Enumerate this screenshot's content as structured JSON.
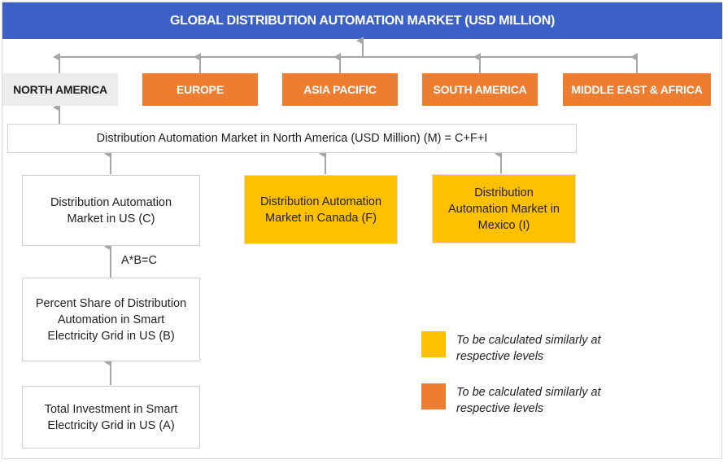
{
  "title": "GLOBAL DISTRIBUTION AUTOMATION MARKET (USD MILLION)",
  "regions": [
    {
      "label": "NORTH AMERICA"
    },
    {
      "label": "EUROPE"
    },
    {
      "label": "ASIA PACIFIC"
    },
    {
      "label": "SOUTH AMERICA"
    },
    {
      "label": "MIDDLE EAST & AFRICA"
    }
  ],
  "north_america_total": "Distribution Automation Market in North America (USD Million) (M) = C+F+I",
  "us_market": "Distribution Automation Market in US (C)",
  "canada_market": "Distribution Automation Market in Canada (F)",
  "mexico_market": "Distribution Automation Market in Mexico (I)",
  "formula": "A*B=C",
  "percent_share": "Percent Share of Distribution Automation in Smart Electricity Grid in US (B)",
  "total_investment": "Total Investment in Smart Electricity Grid in US (A)",
  "legend": [
    {
      "color": "#ffc000",
      "text": "To be calculated similarly at respective levels"
    },
    {
      "color": "#ed7d31",
      "text": "To be calculated similarly at respective levels"
    }
  ],
  "colors": {
    "title_bg": "#3b61c6",
    "orange": "#ed7d31",
    "yellow": "#ffc000",
    "na_bg": "#ececec",
    "connector": "#a6a6a6"
  }
}
